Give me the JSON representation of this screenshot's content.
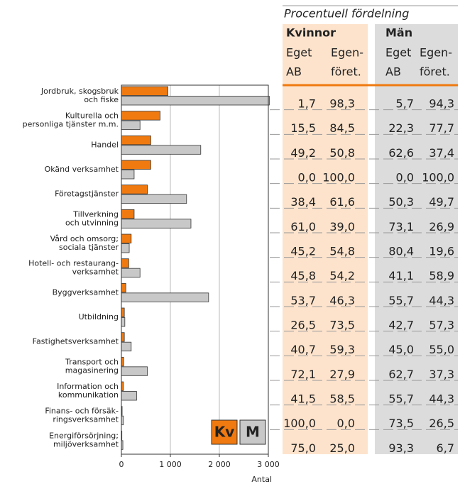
{
  "chart_data": {
    "type": "hbar",
    "categories": [
      [
        "Jordbruk, skogsbruk",
        "och fiske"
      ],
      [
        "Kulturella och",
        "personliga tjänster m.m."
      ],
      [
        "Handel"
      ],
      [
        "Okänd verksamhet"
      ],
      [
        "Företagstjänster"
      ],
      [
        "Tillverkning",
        "och utvinning"
      ],
      [
        "Vård och omsorg;",
        "sociala tjänster"
      ],
      [
        "Hotell- och restaurang-",
        "verksamhet"
      ],
      [
        "Byggverksamhet"
      ],
      [
        "Utbildning"
      ],
      [
        "Fastighetsverksamhet"
      ],
      [
        "Transport och",
        "magasinering"
      ],
      [
        "Information och",
        "kommunikation"
      ],
      [
        "Finans- och försäk-",
        "ringsverksamhet"
      ],
      [
        "Energiförsörjning;",
        "miljöverksamhet"
      ]
    ],
    "series": [
      {
        "name": "Kv",
        "color": "#f07a10",
        "values": [
          950,
          790,
          600,
          600,
          530,
          260,
          200,
          150,
          90,
          60,
          60,
          45,
          40,
          15,
          10
        ]
      },
      {
        "name": "M",
        "color": "#c8c8c8",
        "values": [
          3020,
          380,
          1620,
          260,
          1330,
          1420,
          160,
          380,
          1780,
          70,
          200,
          530,
          310,
          40,
          30
        ]
      }
    ],
    "xlim": [
      0,
      3000
    ],
    "xticks": [
      0,
      {
        "value": 1000,
        "label": "1 000"
      },
      {
        "value": 2000,
        "label": "2 000"
      },
      {
        "value": 3000,
        "label": "3 000"
      }
    ],
    "xlabel": "Antal",
    "grid": true
  },
  "table": {
    "title": "Procentuell fördelning",
    "groups": [
      "Kvinnor",
      "Män"
    ],
    "columns": [
      [
        "Eget",
        "AB"
      ],
      [
        "Egen-",
        "föret."
      ]
    ],
    "rows": [
      [
        "1,7",
        "98,3",
        "5,7",
        "94,3"
      ],
      [
        "15,5",
        "84,5",
        "22,3",
        "77,7"
      ],
      [
        "49,2",
        "50,8",
        "62,6",
        "37,4"
      ],
      [
        "0,0",
        "100,0",
        "0,0",
        "100,0"
      ],
      [
        "38,4",
        "61,6",
        "50,3",
        "49,7"
      ],
      [
        "61,0",
        "39,0",
        "73,1",
        "26,9"
      ],
      [
        "45,2",
        "54,8",
        "80,4",
        "19,6"
      ],
      [
        "45,8",
        "54,2",
        "41,1",
        "58,9"
      ],
      [
        "53,7",
        "46,3",
        "55,7",
        "44,3"
      ],
      [
        "26,5",
        "73,5",
        "42,7",
        "57,3"
      ],
      [
        "40,7",
        "59,3",
        "45,0",
        "55,0"
      ],
      [
        "72,1",
        "27,9",
        "62,7",
        "37,3"
      ],
      [
        "41,5",
        "58,5",
        "55,7",
        "44,3"
      ],
      [
        "100,0",
        "0,0",
        "73,5",
        "26,5"
      ],
      [
        "75,0",
        "25,0",
        "93,3",
        "6,7"
      ]
    ]
  }
}
